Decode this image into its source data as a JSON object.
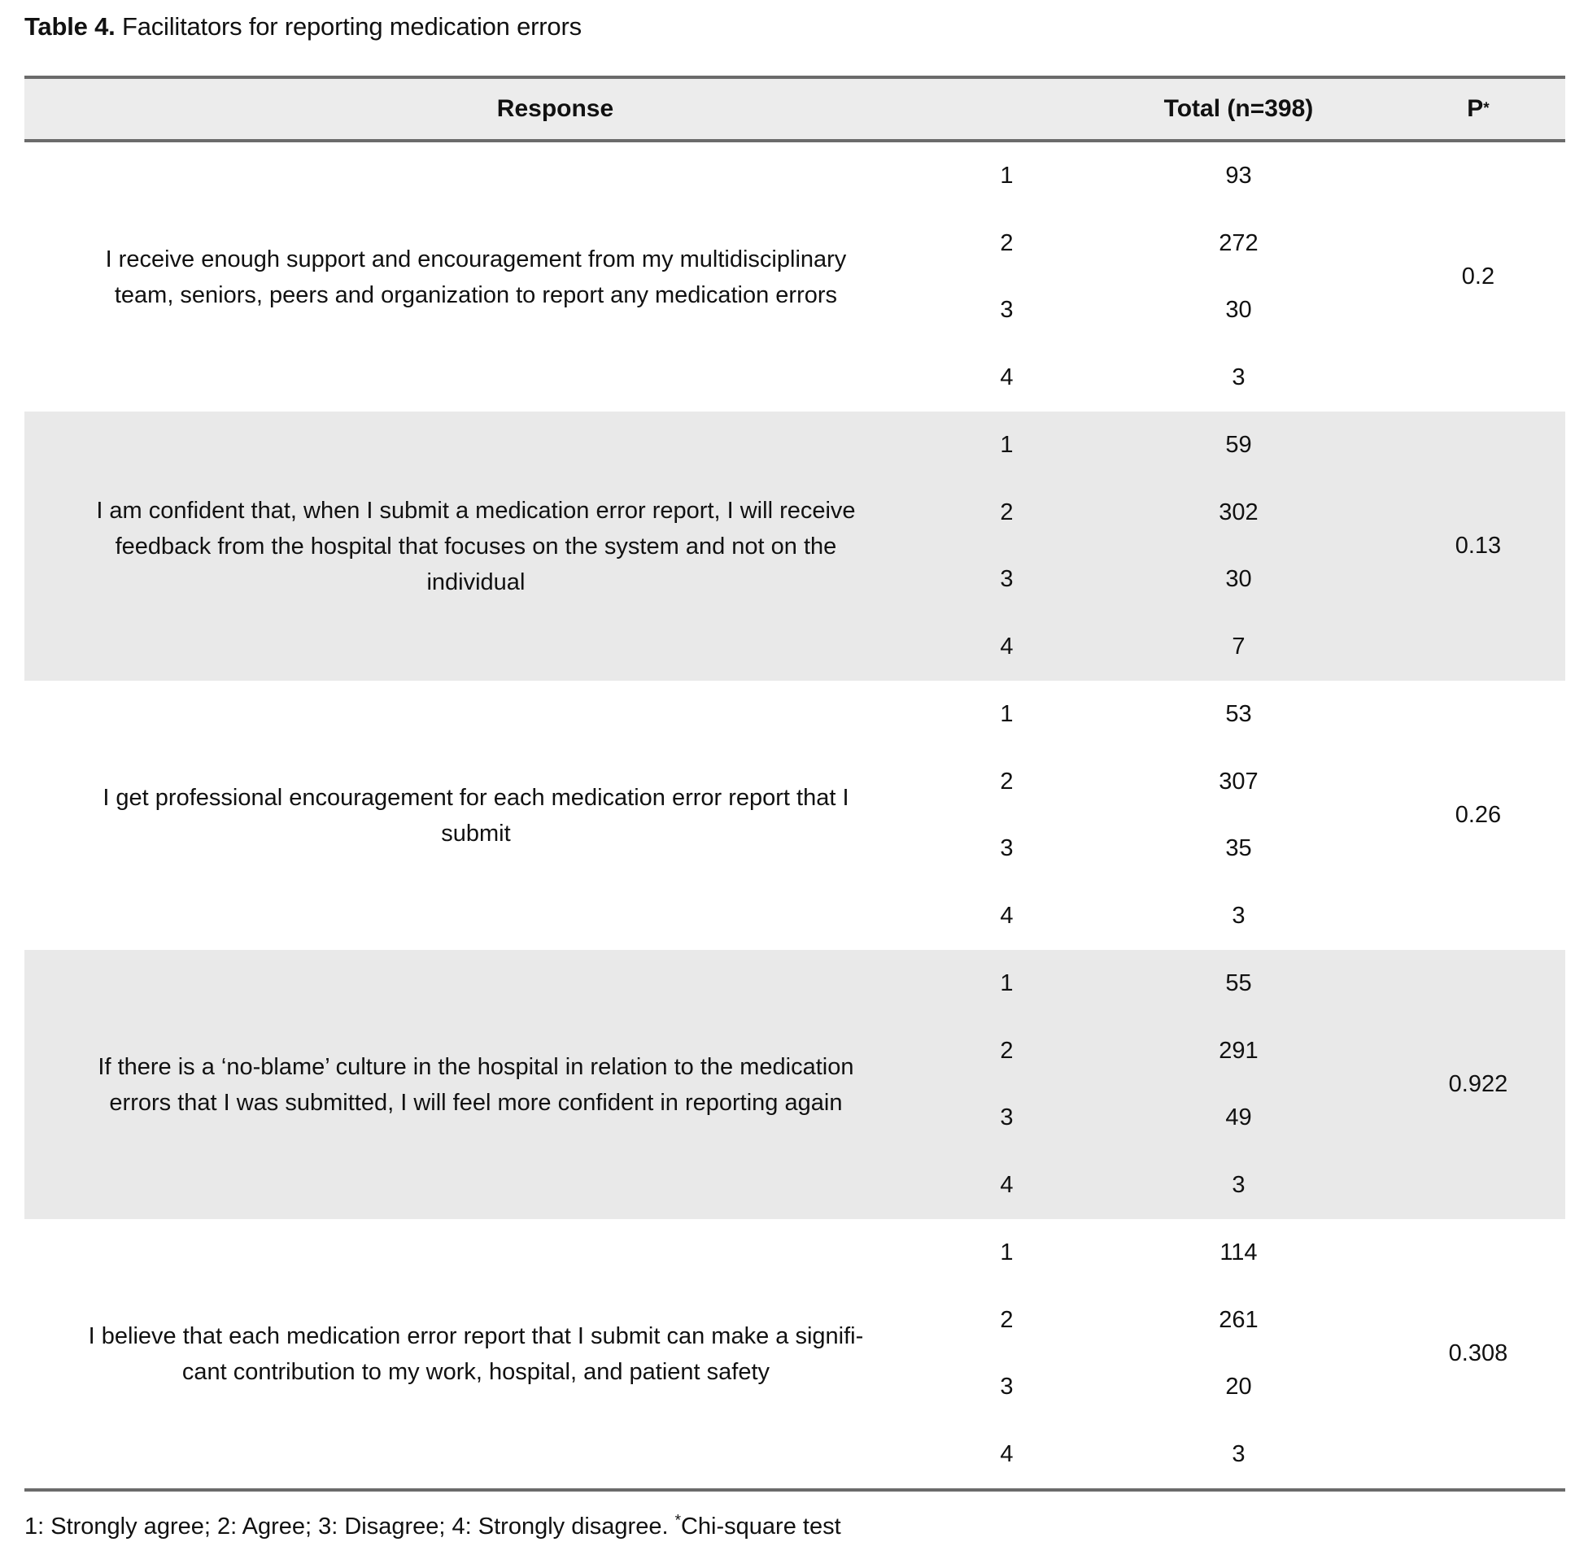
{
  "title": {
    "label": "Table 4.",
    "text": " Facilitators for reporting medication errors"
  },
  "header": {
    "response": "Response",
    "total": "Total (n=398)",
    "p_label": "P",
    "p_sup": "*"
  },
  "legend_codes": {
    "1": "Strongly agree",
    "2": "Agree",
    "3": "Disagree",
    "4": "Strongly disagree"
  },
  "table": {
    "rows": [
      {
        "statement": "I receive enough support and encouragement from my multidisciplinary\nteam, seniors, peers and organization to report any medication errors",
        "items": [
          {
            "code": "1",
            "total": "93"
          },
          {
            "code": "2",
            "total": "272"
          },
          {
            "code": "3",
            "total": "30"
          },
          {
            "code": "4",
            "total": "3"
          }
        ],
        "p": "0.2"
      },
      {
        "statement": "I am confident that, when I submit a medication error report, I will receive\nfeedback from the hospital that focuses on the system and not on the\nindividual",
        "items": [
          {
            "code": "1",
            "total": "59"
          },
          {
            "code": "2",
            "total": "302"
          },
          {
            "code": "3",
            "total": "30"
          },
          {
            "code": "4",
            "total": "7"
          }
        ],
        "p": "0.13"
      },
      {
        "statement": "I get professional encouragement for each medication error report that I\nsubmit",
        "items": [
          {
            "code": "1",
            "total": "53"
          },
          {
            "code": "2",
            "total": "307"
          },
          {
            "code": "3",
            "total": "35"
          },
          {
            "code": "4",
            "total": "3"
          }
        ],
        "p": "0.26"
      },
      {
        "statement": "If there is a ‘no-blame’ culture in the hospital in relation to the medication\nerrors that I was submitted, I will feel more confident in reporting again",
        "items": [
          {
            "code": "1",
            "total": "55"
          },
          {
            "code": "2",
            "total": "291"
          },
          {
            "code": "3",
            "total": "49"
          },
          {
            "code": "4",
            "total": "3"
          }
        ],
        "p": "0.922"
      },
      {
        "statement": "I believe that each medication error report that I submit can make a signifi-\ncant contribution to my work, hospital, and patient safety",
        "items": [
          {
            "code": "1",
            "total": "114"
          },
          {
            "code": "2",
            "total": "261"
          },
          {
            "code": "3",
            "total": "20"
          },
          {
            "code": "4",
            "total": "3"
          }
        ],
        "p": "0.308"
      }
    ]
  },
  "footnote": {
    "legend": "1: Strongly agree; 2: Agree; 3: Disagree; 4: Strongly disagree. ",
    "marker": "*",
    "test": "Chi-square test"
  }
}
